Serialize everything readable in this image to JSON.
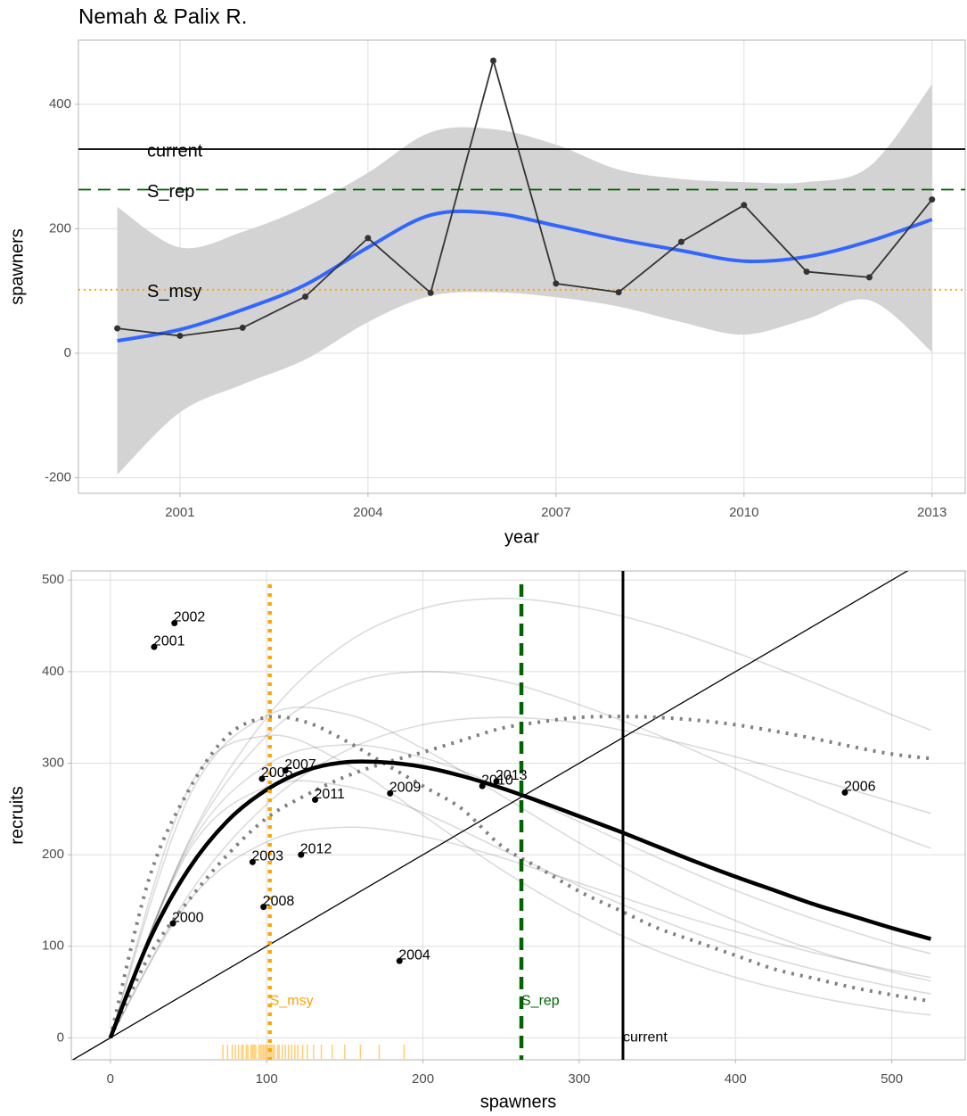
{
  "chart_data": [
    {
      "type": "line",
      "title": "Nemah & Palix R.",
      "x_label": "year",
      "y_label": "spawners",
      "x": [
        2000,
        2001,
        2002,
        2003,
        2004,
        2005,
        2006,
        2007,
        2008,
        2009,
        2010,
        2011,
        2012,
        2013
      ],
      "observed": {
        "color": "#333333",
        "values": [
          40,
          28,
          41,
          91,
          185,
          97,
          470,
          112,
          98,
          179,
          238,
          131,
          122,
          247
        ]
      },
      "smooth": {
        "color": "#3366ff",
        "fill": "#d3d3d3",
        "values": [
          20,
          38,
          70,
          110,
          170,
          222,
          225,
          205,
          183,
          165,
          148,
          155,
          180,
          215
        ],
        "lower": [
          -195,
          -95,
          -50,
          -10,
          50,
          92,
          98,
          90,
          75,
          50,
          30,
          55,
          85,
          2
        ],
        "upper": [
          235,
          170,
          195,
          235,
          290,
          355,
          360,
          335,
          295,
          280,
          275,
          275,
          300,
          432
        ]
      },
      "reference_lines": [
        {
          "label": "current",
          "value": 328,
          "color": "#000000",
          "style": "solid"
        },
        {
          "label": "S_rep",
          "value": 263,
          "color": "#006400",
          "style": "dashed"
        },
        {
          "label": "S_msy",
          "value": 102,
          "color": "#ffa500",
          "style": "dotted"
        }
      ],
      "xlim": [
        1999.38,
        2013.53
      ],
      "ylim": [
        -225,
        503
      ],
      "xticks": [
        2001,
        2004,
        2007,
        2010,
        2013
      ],
      "yticks": [
        -200,
        0,
        200,
        400
      ],
      "grid": true
    },
    {
      "type": "scatter",
      "x_label": "spawners",
      "y_label": "recruits",
      "points": {
        "color": "#000000",
        "x": [
          40,
          28,
          41,
          91,
          185,
          97,
          470,
          112,
          98,
          179,
          238,
          131,
          122,
          247
        ],
        "values": [
          125,
          427,
          453,
          192,
          84,
          283,
          268,
          292,
          143,
          267,
          275,
          260,
          200,
          280
        ],
        "labels": [
          "2000",
          "2001",
          "2002",
          "2003",
          "2004",
          "2005",
          "2006",
          "2007",
          "2008",
          "2009",
          "2010",
          "2011",
          "2012",
          "2013"
        ]
      },
      "fit": {
        "color": "#000000",
        "x": [
          0,
          25,
          50,
          75,
          100,
          125,
          150,
          175,
          200,
          225,
          250,
          275,
          300,
          325,
          350,
          375,
          400,
          425,
          450,
          475,
          500,
          525
        ],
        "values": [
          0,
          107,
          184,
          237,
          271,
          292,
          301,
          301,
          296,
          286,
          273,
          258,
          242,
          226,
          209,
          192,
          176,
          161,
          146,
          133,
          120,
          108
        ],
        "bounds": [
          [
            0,
            175,
            270,
            330,
            350,
            345,
            325,
            300,
            275,
            250,
            210,
            185,
            160,
            140,
            120,
            105,
            90,
            75,
            65,
            55,
            47,
            40
          ],
          [
            0,
            90,
            150,
            200,
            240,
            265,
            285,
            300,
            312,
            325,
            338,
            345,
            350,
            351,
            350,
            347,
            342,
            335,
            327,
            318,
            310,
            305
          ]
        ],
        "bounds_color": "#808080"
      },
      "curve_x": [
        0,
        50,
        100,
        150,
        200,
        250,
        300,
        350,
        400,
        450,
        500,
        525
      ],
      "curves": [
        [
          0,
          272,
          330,
          300,
          243,
          184,
          134,
          95,
          66,
          45,
          30,
          25
        ],
        [
          0,
          204,
          274,
          275,
          246,
          206,
          166,
          130,
          99,
          75,
          56,
          48
        ],
        [
          0,
          262,
          352,
          354,
          316,
          265,
          213,
          167,
          128,
          96,
          72,
          62
        ],
        [
          0,
          208,
          298,
          320,
          306,
          274,
          236,
          197,
          161,
          130,
          103,
          92
        ],
        [
          0,
          149,
          214,
          230,
          220,
          197,
          169,
          141,
          116,
          93,
          74,
          66
        ],
        [
          0,
          212,
          330,
          385,
          400,
          390,
          364,
          331,
          294,
          258,
          223,
          207
        ],
        [
          0,
          214,
          350,
          430,
          469,
          480,
          471,
          450,
          421,
          388,
          353,
          336
        ],
        [
          0,
          156,
          255,
          313,
          342,
          350,
          344,
          328,
          307,
          283,
          258,
          245
        ]
      ],
      "curves_color": "rgba(0,0,0,0.14)",
      "rug": {
        "color": "#ffa500",
        "values": [
          72,
          75,
          78,
          80,
          82,
          84,
          85,
          87,
          88,
          90,
          91,
          92,
          93,
          95,
          96,
          97,
          98,
          99,
          100,
          101,
          102,
          103,
          104,
          105,
          107,
          108,
          110,
          112,
          114,
          116,
          118,
          120,
          123,
          126,
          130,
          135,
          142,
          150,
          160,
          172,
          188
        ]
      },
      "reference_lines": [
        {
          "label": "S_msy",
          "value": 102,
          "color": "#ffa500",
          "style": "dotted"
        },
        {
          "label": "S_rep",
          "value": 263,
          "color": "#006400",
          "style": "dashed"
        },
        {
          "label": "current",
          "value": 328,
          "color": "#000000",
          "style": "solid"
        }
      ],
      "xlim": [
        -25,
        547
      ],
      "ylim": [
        -24,
        510
      ],
      "xticks": [
        0,
        100,
        200,
        300,
        400,
        500
      ],
      "yticks": [
        0,
        100,
        200,
        300,
        400,
        500
      ],
      "grid": true
    }
  ]
}
